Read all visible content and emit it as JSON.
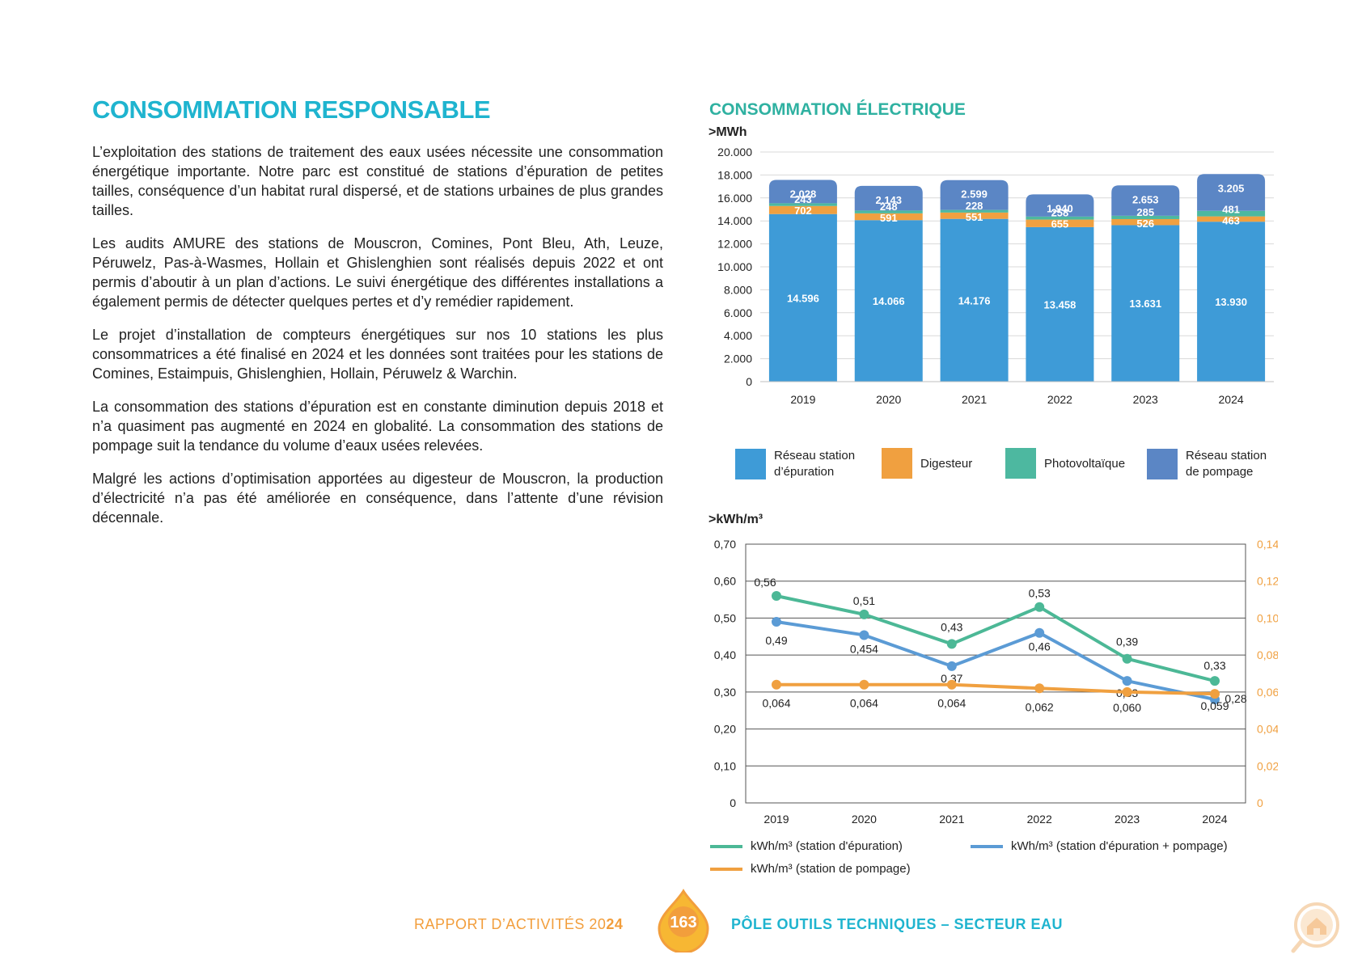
{
  "page": {
    "title": "CONSOMMATION RESPONSABLE",
    "paragraphs": [
      "L’exploitation des stations de traitement des eaux usées nécessite une consommation énergétique importante. Notre parc est constitué de stations d’épuration de petites tailles, conséquence d’un habitat rural dispersé, et de stations urbaines de plus grandes tailles.",
      "Les audits AMURE des stations de Mouscron, Comines, Pont Bleu, Ath, Leuze, Péruwelz, Pas-à-Wasmes, Hollain et Ghislenghien sont réalisés depuis 2022 et ont permis d’aboutir à un plan d’actions. Le suivi énergétique des différentes installations a également permis de détecter quelques pertes et d’y remédier rapidement.",
      "Le projet d’installation de compteurs énergétiques sur nos 10 stations les plus consommatrices a été finalisé en 2024 et les données sont traitées pour les stations de Comines, Estaimpuis, Ghislenghien, Hollain, Péruwelz & Warchin.",
      "La consommation des stations d’épuration est en constante diminution depuis 2018 et n’a quasiment pas augmenté en 2024 en globalité. La consommation des stations de pompage suit la tendance du volume d’eaux usées relevées.",
      "Malgré les actions d’optimisation apportées au digesteur de Mouscron, la production d’électricité n’a pas été améliorée en conséquence, dans l’attente d’une révision décennale."
    ]
  },
  "colors": {
    "reseau_epuration": "#3e9bd7",
    "digesteur": "#f0a040",
    "photovoltaique": "#4db8a0",
    "reseau_pompage": "#5b86c5",
    "line_epuration": "#4cb896",
    "line_epuration_pompage": "#5b9bd5",
    "line_pompage": "#f0a040",
    "teal_title": "#2fb1a1",
    "cyan_title": "#1fb4cf",
    "orange": "#f29e3c"
  },
  "chart_data": [
    {
      "type": "bar",
      "stacked": true,
      "title": "CONSOMMATION ÉLECTRIQUE",
      "ylabel": ">MWh",
      "ylim": [
        0,
        20000
      ],
      "yticks": [
        "0",
        "2.000",
        "4.000",
        "6.000",
        "8.000",
        "10.000",
        "12.000",
        "14.000",
        "16.000",
        "18.000",
        "20.000"
      ],
      "categories": [
        "2019",
        "2020",
        "2021",
        "2022",
        "2023",
        "2024"
      ],
      "series": [
        {
          "name": "Réseau station d’épuration",
          "color_key": "reseau_epuration",
          "values": [
            14596,
            14066,
            14176,
            13458,
            13631,
            13930
          ],
          "labels": [
            "14.596",
            "14.066",
            "14.176",
            "13.458",
            "13.631",
            "13.930"
          ]
        },
        {
          "name": "Digesteur",
          "color_key": "digesteur",
          "values": [
            702,
            591,
            551,
            655,
            526,
            463
          ],
          "labels": [
            "702",
            "591",
            "551",
            "655",
            "526",
            "463"
          ]
        },
        {
          "name": "Photovoltaïque",
          "color_key": "photovoltaique",
          "values": [
            243,
            248,
            228,
            258,
            285,
            481
          ],
          "labels": [
            "243",
            "248",
            "228",
            "258",
            "285",
            "481"
          ]
        },
        {
          "name": "Réseau station de pompage",
          "color_key": "reseau_pompage",
          "values": [
            2028,
            2143,
            2599,
            1940,
            2653,
            3205
          ],
          "labels": [
            "2.028",
            "2.143",
            "2.599",
            "1.940",
            "2.653",
            "3.205"
          ]
        }
      ],
      "legend": [
        {
          "label": "Réseau station d’épuration",
          "color_key": "reseau_epuration"
        },
        {
          "label": "Digesteur",
          "color_key": "digesteur"
        },
        {
          "label": "Photovoltaïque",
          "color_key": "photovoltaique"
        },
        {
          "label": "Réseau station de pompage",
          "color_key": "reseau_pompage"
        }
      ]
    },
    {
      "type": "line",
      "ylabel": ">kWh/m³",
      "x": [
        "2019",
        "2020",
        "2021",
        "2022",
        "2023",
        "2024"
      ],
      "ylim_left": [
        0,
        0.7
      ],
      "ylim_right": [
        0,
        0.14
      ],
      "yticks_left": [
        "0",
        "0,10",
        "0,20",
        "0,30",
        "0,40",
        "0,50",
        "0,60",
        "0,70"
      ],
      "yticks_right": [
        "0",
        "0,02",
        "0,04",
        "0,06",
        "0,08",
        "0,10",
        "0,12",
        "0,14"
      ],
      "series": [
        {
          "name": "kWh/m³ (station d'épuration)",
          "axis": "left",
          "color_key": "line_epuration",
          "values": [
            0.56,
            0.51,
            0.43,
            0.53,
            0.39,
            0.33
          ],
          "labels": [
            "0,56",
            "0,51",
            "0,43",
            "0,53",
            "0,39",
            "0,33"
          ]
        },
        {
          "name": "kWh/m³ (station d'épuration + pompage)",
          "axis": "left",
          "color_key": "line_epuration_pompage",
          "values": [
            0.49,
            0.454,
            0.37,
            0.46,
            0.33,
            0.28
          ],
          "labels": [
            "0,49",
            "0,454",
            "0,37",
            "0,46",
            "0,33",
            "0,28"
          ]
        },
        {
          "name": "kWh/m³ (station de pompage)",
          "axis": "right",
          "color_key": "line_pompage",
          "values": [
            0.064,
            0.064,
            0.064,
            0.062,
            0.06,
            0.059
          ],
          "labels": [
            "0,064",
            "0,064",
            "0,064",
            "0,062",
            "0,060",
            "0,059"
          ]
        }
      ]
    }
  ],
  "footer": {
    "report_label": "RAPPORT D’ACTIVITÉS 20",
    "report_year_bold": "24",
    "page_number": "163",
    "section": "PÔLE OUTILS TECHNIQUES – SECTEUR EAU",
    "home_icon": "home-search-icon"
  }
}
